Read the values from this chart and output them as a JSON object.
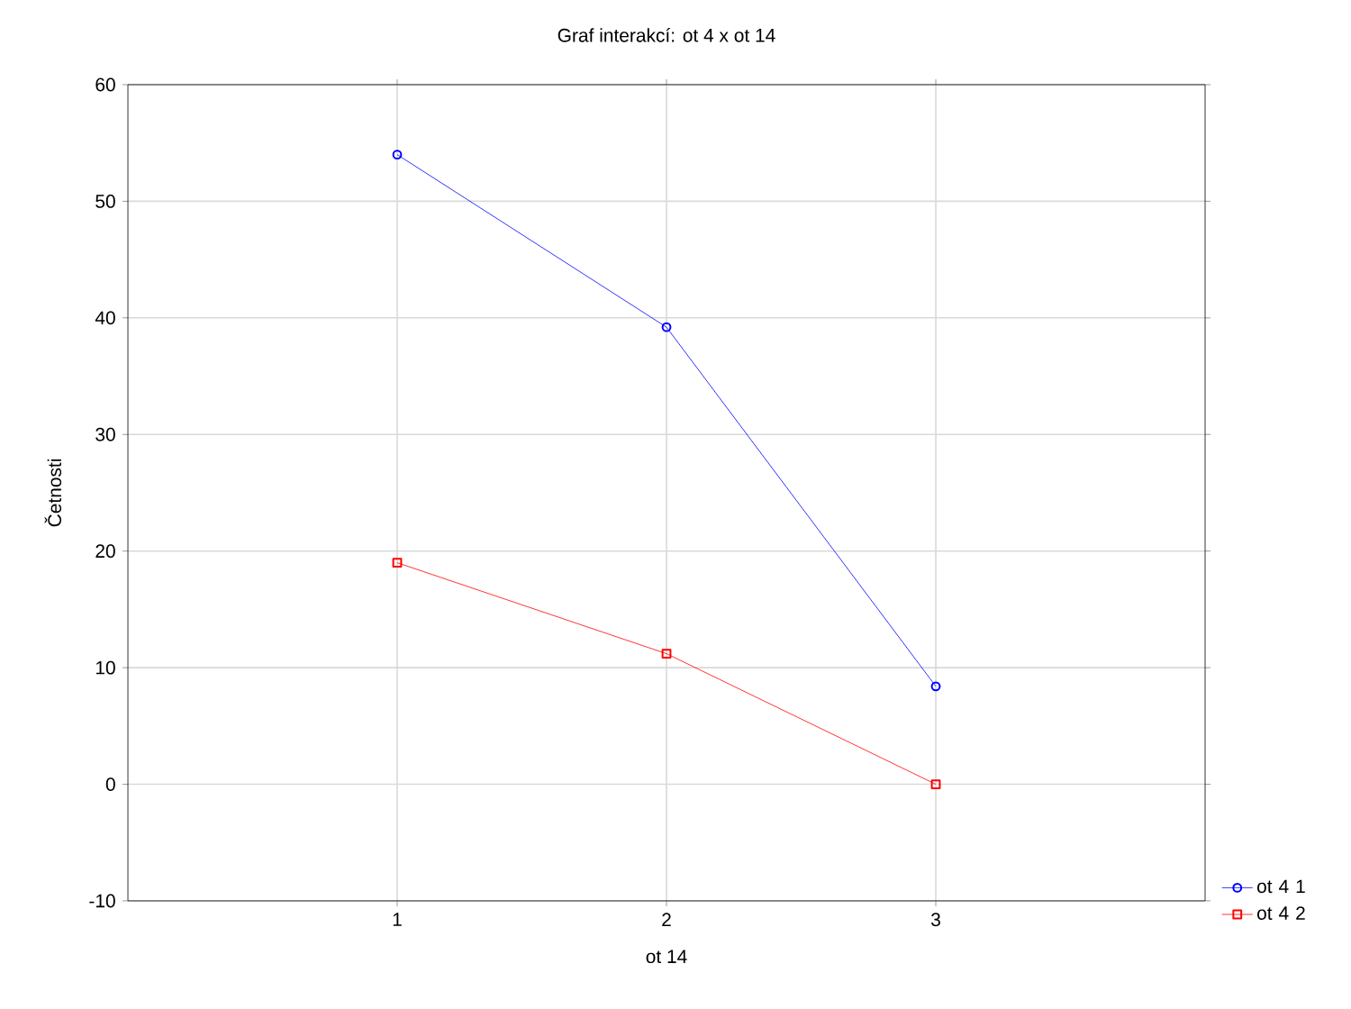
{
  "chart_data": {
    "type": "line",
    "title": "Graf interakcí: ot 4 x ot 14",
    "xlabel": "ot 14",
    "ylabel": "Četnosti",
    "categories": [
      "1",
      "2",
      "3"
    ],
    "ylim": [
      -10,
      60
    ],
    "yticks": [
      -10,
      0,
      10,
      20,
      30,
      40,
      50,
      60
    ],
    "grid": true,
    "legend": "bottom right",
    "series": [
      {
        "name": "ot 4 1",
        "color": "#0000ff",
        "marker": "circle",
        "values": [
          54,
          39.2,
          8.4
        ]
      },
      {
        "name": "ot 4 2",
        "color": "#ff0000",
        "marker": "square",
        "values": [
          19,
          11.2,
          0
        ]
      }
    ]
  }
}
